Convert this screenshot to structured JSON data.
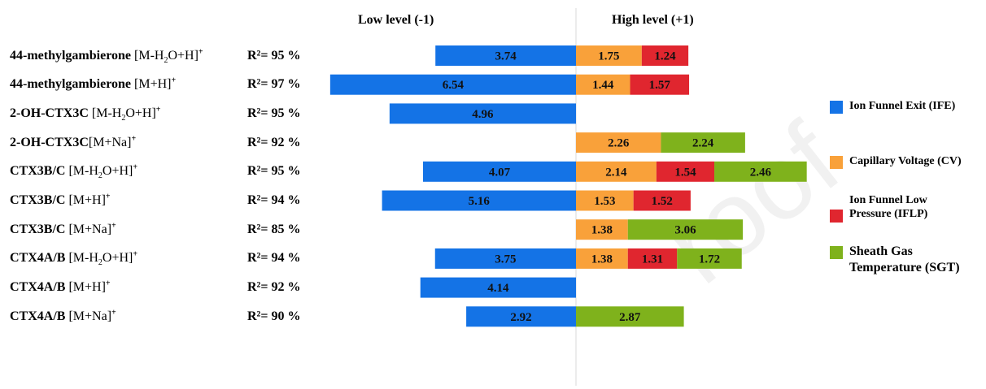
{
  "headers": {
    "low": "Low level (-1)",
    "high": "High level (+1)"
  },
  "rows": [
    {
      "bold": "44-methylgambierone",
      "pre": "[M-H",
      "sub": "2",
      "post": "O+H]",
      "sup": "+",
      "r2": "R²= 95 %"
    },
    {
      "bold": "44-methylgambierone",
      "pre": "[M+H]",
      "sub": "",
      "post": "",
      "sup": "+",
      "r2": "R²= 97 %"
    },
    {
      "bold": "2-OH-CTX3C",
      "pre": "[M-H",
      "sub": "2",
      "post": "O+H]",
      "sup": "+",
      "r2": "R²= 95 %"
    },
    {
      "bold": "2-OH-CTX3C",
      "pre": "[M+Na]",
      "sub": "",
      "post": "",
      "sup": "+",
      "r2": "R²= 92 %"
    },
    {
      "bold": "CTX3B/C",
      "pre": "[M-H",
      "sub": "2",
      "post": "O+H]",
      "sup": "+",
      "r2": "R²= 95 %"
    },
    {
      "bold": "CTX3B/C",
      "pre": "[M+H]",
      "sub": "",
      "post": "",
      "sup": "+",
      "r2": "R²= 94 %"
    },
    {
      "bold": "CTX3B/C",
      "pre": "[M+Na]",
      "sub": "",
      "post": "",
      "sup": "+",
      "r2": "R²= 85 %"
    },
    {
      "bold": "CTX4A/B",
      "pre": "[M-H",
      "sub": "2",
      "post": "O+H]",
      "sup": "+",
      "r2": "R²= 94 %"
    },
    {
      "bold": "CTX4A/B",
      "pre": "[M+H]",
      "sub": "",
      "post": "",
      "sup": "+",
      "r2": "R²= 92 %"
    },
    {
      "bold": "CTX4A/B",
      "pre": "[M+Na]",
      "sub": "",
      "post": "",
      "sup": "+",
      "r2": "R²= 90 %"
    }
  ],
  "legend": [
    {
      "name": "Ion Funnel Exit (IFE)",
      "color": "#1473e6"
    },
    {
      "name": "Capillary Voltage (CV)",
      "color": "#f9a13a"
    },
    {
      "name": "Ion Funnel Low Pressure (IFLP)",
      "color": "#e0262f"
    },
    {
      "name": "Sheath Gas Temperature (SGT)",
      "color": "#7fb21c"
    }
  ],
  "chart_data": {
    "type": "bar",
    "orientation": "horizontal",
    "stacked": true,
    "grid": false,
    "legend_position": "right",
    "categories": [
      "44-methylgambierone [M-H2O+H]+",
      "44-methylgambierone [M+H]+",
      "2-OH-CTX3C [M-H2O+H]+",
      "2-OH-CTX3C[M+Na]+",
      "CTX3B/C [M-H2O+H]+",
      "CTX3B/C [M+H]+",
      "CTX3B/C [M+Na]+",
      "CTX4A/B [M-H2O+H]+",
      "CTX4A/B [M+H]+",
      "CTX4A/B [M+Na]+"
    ],
    "series": [
      {
        "name": "Ion Funnel Exit (IFE)",
        "color": "#1473e6",
        "side": "low",
        "values": [
          3.74,
          6.54,
          4.96,
          null,
          4.07,
          5.16,
          null,
          3.75,
          4.14,
          2.92
        ]
      },
      {
        "name": "Capillary Voltage (CV)",
        "color": "#f9a13a",
        "side": "high",
        "values": [
          1.75,
          1.44,
          null,
          2.26,
          2.14,
          1.53,
          1.38,
          1.38,
          null,
          null
        ]
      },
      {
        "name": "Ion Funnel Low Pressure (IFLP)",
        "color": "#e0262f",
        "side": "high",
        "values": [
          1.24,
          1.57,
          null,
          null,
          1.54,
          1.52,
          null,
          1.31,
          null,
          null
        ]
      },
      {
        "name": "Sheath Gas Temperature (SGT)",
        "color": "#7fb21c",
        "side": "high",
        "values": [
          null,
          null,
          null,
          2.24,
          2.46,
          null,
          3.06,
          1.72,
          null,
          2.87
        ]
      }
    ]
  }
}
